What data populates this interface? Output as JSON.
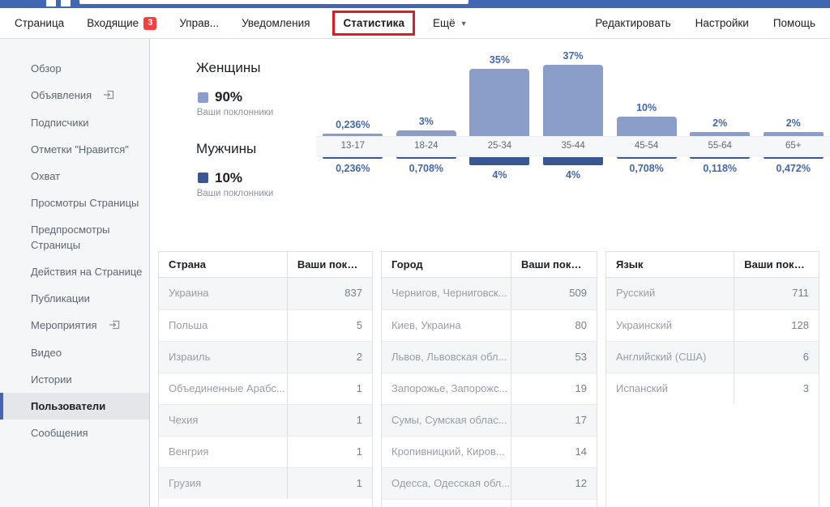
{
  "colors": {
    "brand_blue": "#4267b2",
    "badge_red": "#fa3e3e",
    "highlight_box_red": "#e21b1b",
    "female_bar": "#8b9dc9",
    "male_bar": "#3a5795",
    "value_label_blue": "#4267b2"
  },
  "nav": {
    "items": [
      {
        "label": "Страница",
        "active": false
      },
      {
        "label": "Входящие",
        "badge": "3",
        "active": false
      },
      {
        "label": "Управ...",
        "active": false
      },
      {
        "label": "Уведомления",
        "active": false
      },
      {
        "label": "Статистика",
        "active": true
      },
      {
        "label": "Ещё",
        "caret": true,
        "active": false
      }
    ],
    "right_items": [
      {
        "label": "Редактировать"
      },
      {
        "label": "Настройки"
      },
      {
        "label": "Помощь"
      }
    ]
  },
  "sidebar": {
    "items": [
      {
        "label": "Обзор"
      },
      {
        "label": "Объявления",
        "icon": "external-link"
      },
      {
        "label": "Подписчики"
      },
      {
        "label": "Отметки \"Нравится\""
      },
      {
        "label": "Охват"
      },
      {
        "label": "Просмотры Страницы"
      },
      {
        "label": "Предпросмотры Страницы"
      },
      {
        "label": "Действия на Странице"
      },
      {
        "label": "Публикации"
      },
      {
        "label": "Мероприятия",
        "icon": "external-link"
      },
      {
        "label": "Видео"
      },
      {
        "label": "Истории"
      },
      {
        "label": "Пользователи",
        "selected": true
      },
      {
        "label": "Сообщения"
      }
    ]
  },
  "chart_data": {
    "type": "bar",
    "orientation": "diverging-vertical",
    "title": "",
    "categories": [
      "13-17",
      "18-24",
      "25-34",
      "35-44",
      "45-54",
      "55-64",
      "65+"
    ],
    "series": [
      {
        "name": "Женщины",
        "legend_value": "90%",
        "legend_caption": "Ваши поклонники",
        "color": "#8b9dc9",
        "values": [
          0.236,
          3,
          35,
          37,
          10,
          2,
          2
        ],
        "value_labels": [
          "0,236%",
          "3%",
          "35%",
          "37%",
          "10%",
          "2%",
          "2%"
        ]
      },
      {
        "name": "Мужчины",
        "legend_value": "10%",
        "legend_caption": "Ваши поклонники",
        "color": "#3a5795",
        "values": [
          0.236,
          0.708,
          4,
          4,
          0.708,
          0.118,
          0.472
        ],
        "value_labels": [
          "0,236%",
          "0,708%",
          "4%",
          "4%",
          "0,708%",
          "0,118%",
          "0,472%"
        ]
      }
    ],
    "ylim": [
      0,
      40
    ],
    "grid": false,
    "legend_position": "left"
  },
  "tables": [
    {
      "header": [
        "Страна",
        "Ваши поклон..."
      ],
      "rows": [
        [
          "Украина",
          "837"
        ],
        [
          "Польша",
          "5"
        ],
        [
          "Израиль",
          "2"
        ],
        [
          "Объединенные Арабс...",
          "1"
        ],
        [
          "Чехия",
          "1"
        ],
        [
          "Венгрия",
          "1"
        ],
        [
          "Грузия",
          "1"
        ]
      ],
      "extra_empty_row": false
    },
    {
      "header": [
        "Город",
        "Ваши поклон..."
      ],
      "rows": [
        [
          "Чернигов, Черниговск...",
          "509"
        ],
        [
          "Киев, Украина",
          "80"
        ],
        [
          "Львов, Львовская обл...",
          "53"
        ],
        [
          "Запорожье, Запорожс...",
          "19"
        ],
        [
          "Сумы, Сумская облас...",
          "17"
        ],
        [
          "Кропивницкий, Киров...",
          "14"
        ],
        [
          "Одесса, Одесская обл...",
          "12"
        ]
      ],
      "extra_empty_row": true
    },
    {
      "header": [
        "Язык",
        "Ваши поклон..."
      ],
      "rows": [
        [
          "Русский",
          "711"
        ],
        [
          "Украинский",
          "128"
        ],
        [
          "Английский (США)",
          "6"
        ],
        [
          "Испанский",
          "3"
        ]
      ],
      "extra_empty_row": false
    }
  ]
}
